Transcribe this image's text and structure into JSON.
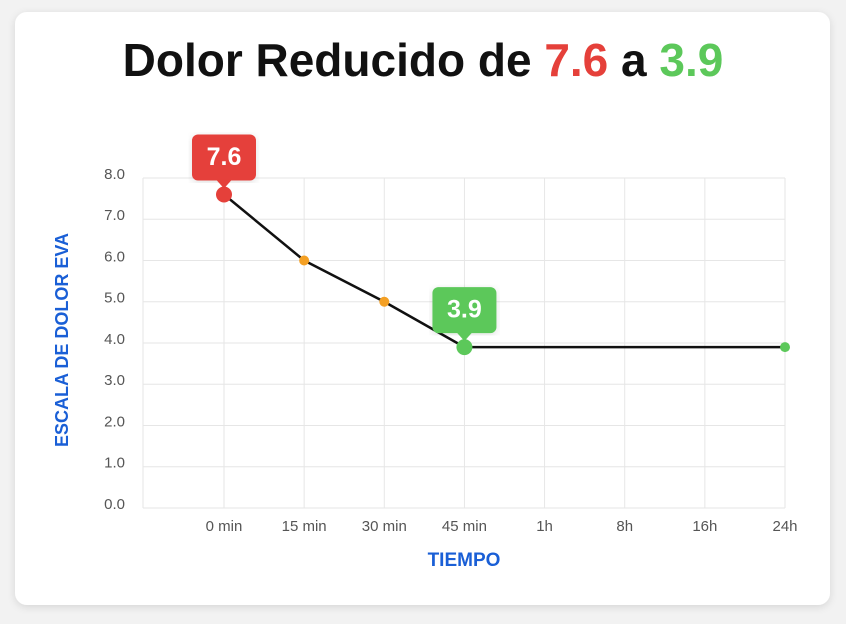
{
  "chart_data": {
    "type": "line",
    "title_parts": [
      {
        "text": "Dolor Reducido de "
      },
      {
        "text": "7.6",
        "color": "#e5403a"
      },
      {
        "text": " a "
      },
      {
        "text": "3.9",
        "color": "#5cc85a"
      }
    ],
    "x_label": "TIEMPO",
    "y_label": "ESCALA DE DOLOR EVA",
    "categories": [
      "0 min",
      "15 min",
      "30 min",
      "45 min",
      "1h",
      "8h",
      "16h",
      "24h"
    ],
    "values": [
      7.6,
      6.0,
      5.0,
      3.9,
      3.9,
      3.9,
      3.9,
      3.9
    ],
    "value_labels": [
      "7.6",
      null,
      null,
      "3.9",
      null,
      null,
      null,
      null
    ],
    "marker_colors": [
      "#e5403a",
      "#f4a024",
      "#f4a024",
      "#5cc85a",
      null,
      null,
      null,
      "#5cc85a"
    ],
    "color": "#111111",
    "ylim": [
      0,
      8
    ],
    "yticks": [
      {
        "value": 0,
        "label": "0.0"
      },
      {
        "value": 1,
        "label": "1.0"
      },
      {
        "value": 2,
        "label": "2.0"
      },
      {
        "value": 3,
        "label": "3.0"
      },
      {
        "value": 4,
        "label": "4.0"
      },
      {
        "value": 5,
        "label": "5.0"
      },
      {
        "value": 6,
        "label": "6.0"
      },
      {
        "value": 7,
        "label": "7.0"
      },
      {
        "value": 8,
        "label": "8.0"
      }
    ],
    "grid": true
  }
}
